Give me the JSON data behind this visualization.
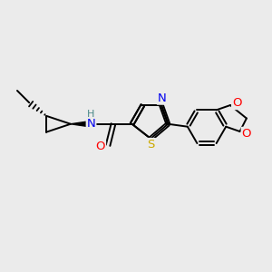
{
  "bg_color": "#ebebeb",
  "atom_colors": {
    "N": "#0000ee",
    "O": "#ff0000",
    "S": "#ccaa00",
    "C": "#000000",
    "H": "#4a8888"
  },
  "bond_lw": 1.4,
  "font_size": 9.5
}
